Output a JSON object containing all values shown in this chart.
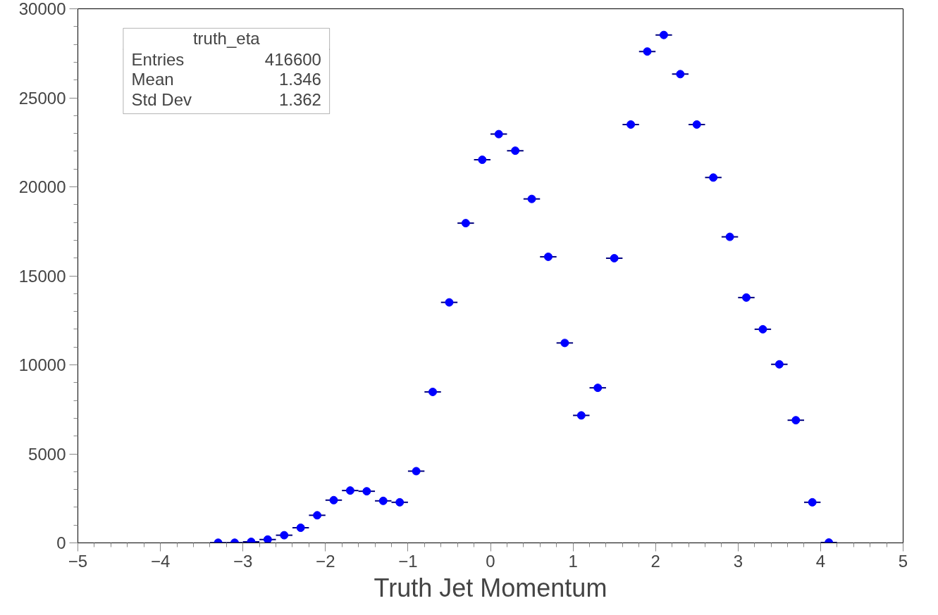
{
  "chart_data": {
    "type": "scatter",
    "xlabel": "Truth Jet Momentum",
    "x": [
      -3.3,
      -3.1,
      -2.9,
      -2.7,
      -2.5,
      -2.3,
      -2.1,
      -1.9,
      -1.7,
      -1.5,
      -1.3,
      -1.1,
      -0.9,
      -0.7,
      -0.5,
      -0.3,
      -0.1,
      0.1,
      0.3,
      0.5,
      0.7,
      0.9,
      1.1,
      1.3,
      1.5,
      1.7,
      1.9,
      2.1,
      2.3,
      2.5,
      2.7,
      2.9,
      3.1,
      3.3,
      3.5,
      3.7,
      3.9,
      4.1
    ],
    "series": [
      {
        "color": "#0000ff",
        "values": [
          10,
          10,
          60,
          190,
          430,
          850,
          1550,
          2400,
          2940,
          2900,
          2360,
          2280,
          4030,
          8480,
          13510,
          17960,
          21520,
          22960,
          22030,
          19320,
          16070,
          11230,
          7160,
          8710,
          15990,
          23500,
          27600,
          28530,
          26330,
          23500,
          20520,
          17190,
          13780,
          12000,
          10030,
          6890,
          2280,
          20
        ],
        "xerrors": [
          0.1,
          0.1,
          0.1,
          0.1,
          0.1,
          0.1,
          0.1,
          0.1,
          0.1,
          0.1,
          0.1,
          0.1,
          0.1,
          0.1,
          0.1,
          0.1,
          0.1,
          0.1,
          0.1,
          0.1,
          0.1,
          0.1,
          0.1,
          0.1,
          0.1,
          0.1,
          0.1,
          0.1,
          0.1,
          0.1,
          0.1,
          0.1,
          0.1,
          0.1,
          0.1,
          0.1,
          0.1,
          0.1
        ]
      }
    ],
    "xlim": [
      -5,
      5
    ],
    "ylim": [
      0,
      30000
    ],
    "xticks": [
      -5,
      -4,
      -3,
      -2,
      -1,
      0,
      1,
      2,
      3,
      4,
      5
    ],
    "yticks": [
      0,
      5000,
      10000,
      15000,
      20000,
      25000,
      30000
    ],
    "grid": false,
    "marker": "circle",
    "annotations": [
      "truth_eta",
      "Entries",
      "416600",
      "Mean",
      "1.346",
      "Std Dev",
      "1.362"
    ]
  }
}
